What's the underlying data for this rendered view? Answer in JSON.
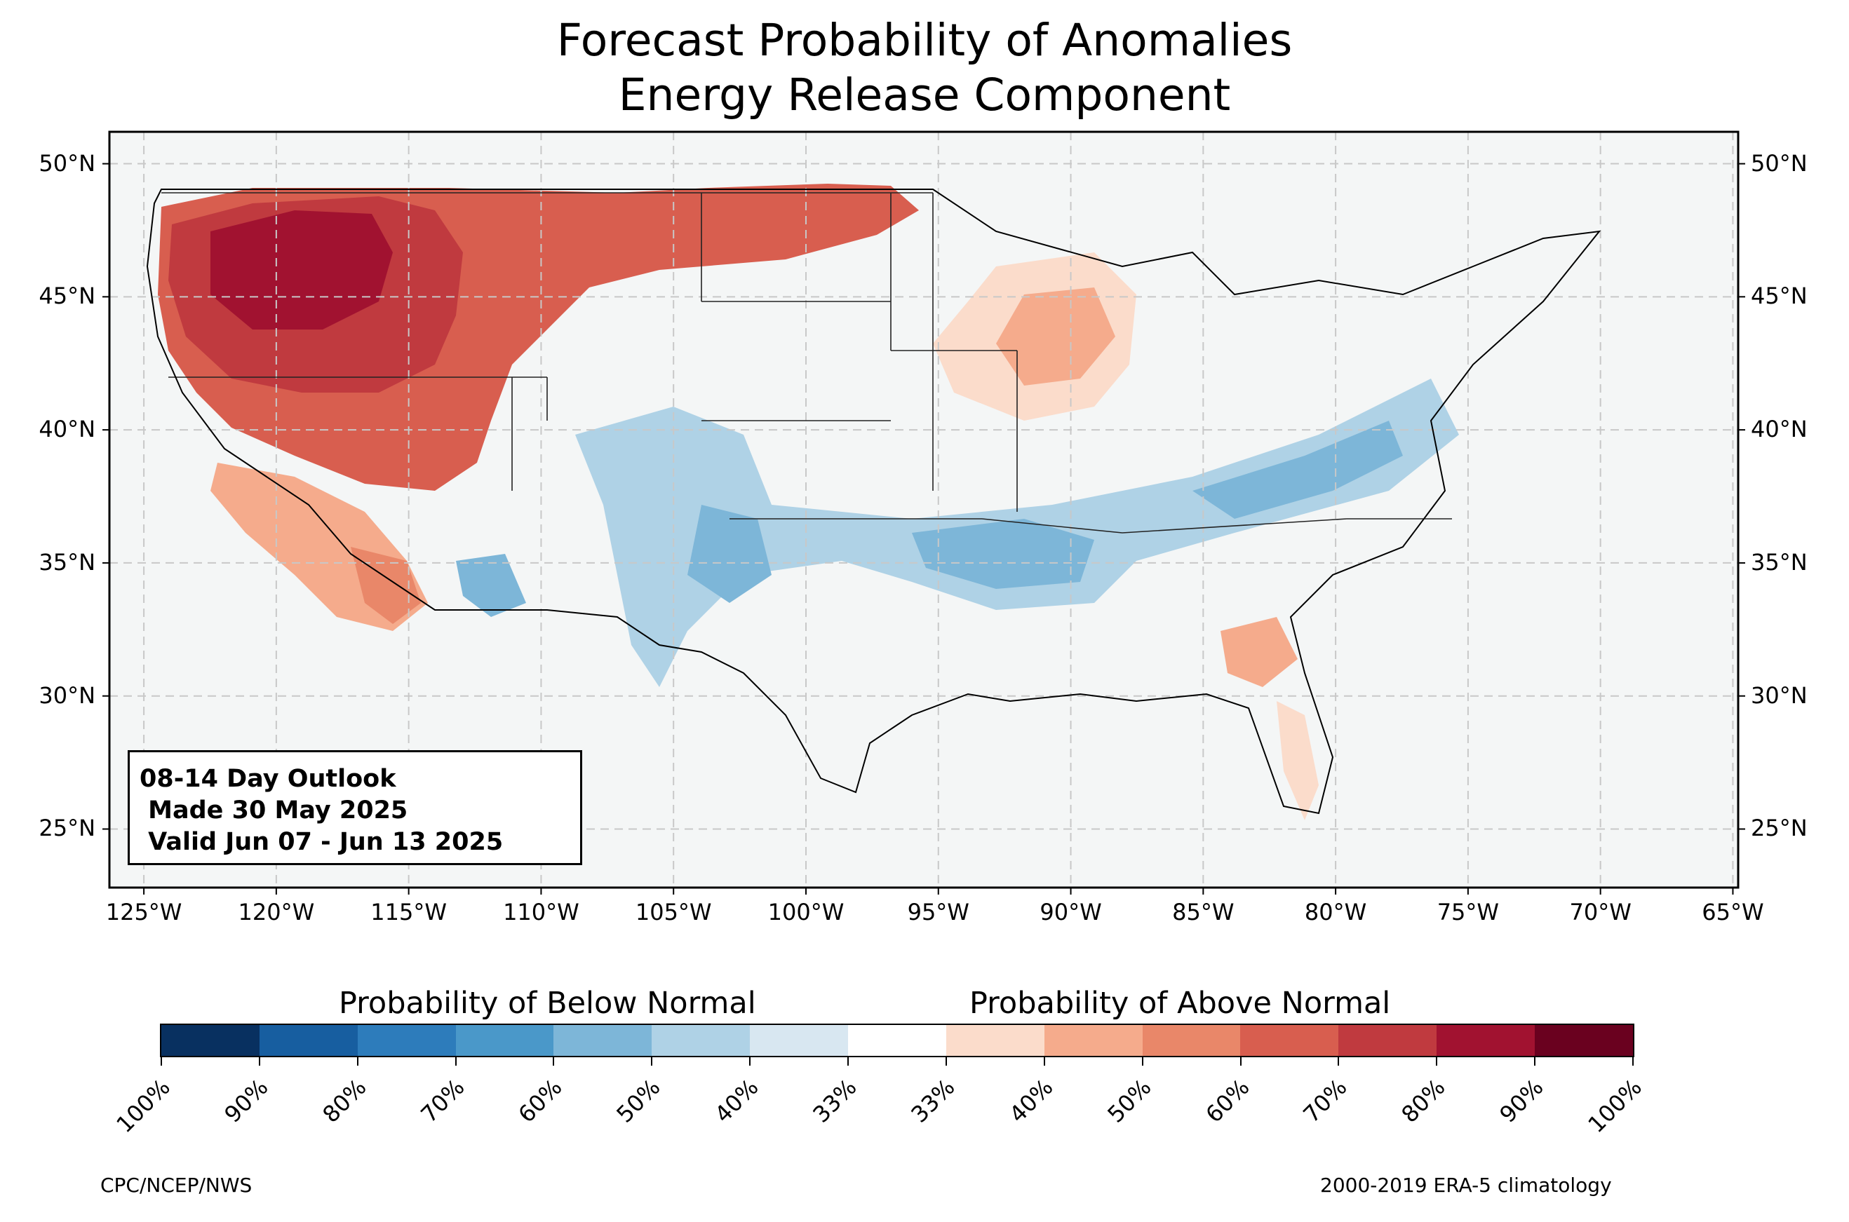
{
  "title": {
    "line1": "Forecast Probability of Anomalies",
    "line2": "Energy Release Component"
  },
  "map": {
    "lat_labels": [
      "50°N",
      "45°N",
      "40°N",
      "35°N",
      "30°N",
      "25°N"
    ],
    "lon_labels": [
      "125°W",
      "120°W",
      "115°W",
      "110°W",
      "105°W",
      "100°W",
      "95°W",
      "90°W",
      "85°W",
      "80°W",
      "75°W",
      "70°W",
      "65°W"
    ],
    "lat_values": [
      50,
      45,
      40,
      35,
      30,
      25
    ],
    "lon_values": [
      -125,
      -120,
      -115,
      -110,
      -105,
      -100,
      -95,
      -90,
      -85,
      -80,
      -75,
      -70,
      -65
    ],
    "extent": {
      "lon_min": -126.3,
      "lon_max": -64.8,
      "lat_min": 22.8,
      "lat_max": 51.2
    },
    "land_color": "#f4f6f6",
    "gridlines": "dashed",
    "regions": {
      "above_normal": [
        "Pacific Northwest (up to 90%)",
        "Northern Rockies",
        "Northern Plains",
        "California",
        "Arizona",
        "Upper Midwest",
        "Georgia/South Carolina",
        "Florida"
      ],
      "below_normal": [
        "Southern Plains",
        "Mid-South",
        "Ohio Valley",
        "Mid-Atlantic",
        "Southern Rockies",
        "Southern Nevada/Arizona"
      ]
    }
  },
  "info_box": {
    "line1": "08-14 Day Outlook",
    "line2": " Made 30 May 2025",
    "line3": " Valid Jun 07 - Jun 13 2025"
  },
  "colorbar": {
    "below_label": "Probability of Below Normal",
    "above_label": "Probability of Above Normal",
    "ticks": [
      "100%",
      "90%",
      "80%",
      "70%",
      "60%",
      "50%",
      "40%",
      "33%",
      "33%",
      "40%",
      "50%",
      "60%",
      "70%",
      "80%",
      "90%",
      "100%"
    ],
    "colors": [
      "#083060",
      "#175ea0",
      "#2d7cbb",
      "#4a98c9",
      "#7db6d8",
      "#afd2e6",
      "#d8e7f1",
      "#ffffff",
      "#fbdccb",
      "#f5ab8c",
      "#e98769",
      "#d85e4f",
      "#c03a3f",
      "#a11230",
      "#6a011f"
    ]
  },
  "footer": {
    "left": "CPC/NCEP/NWS",
    "right": "2000-2019 ERA-5 climatology"
  }
}
